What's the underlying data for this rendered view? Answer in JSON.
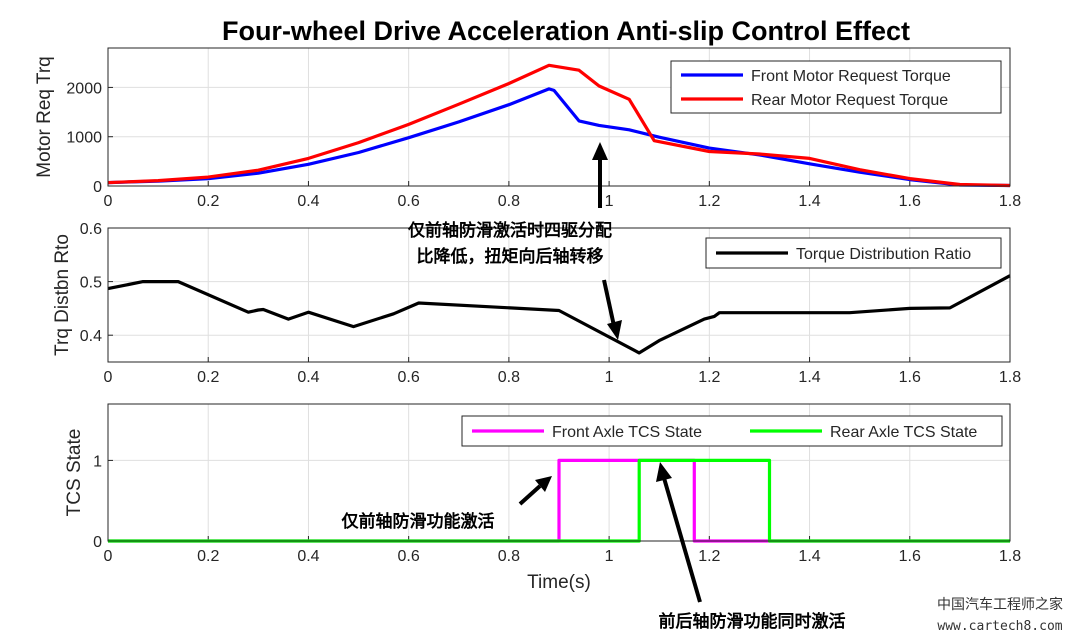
{
  "title": "Four-wheel Drive Acceleration Anti-slip Control Effect",
  "chart_data": [
    {
      "type": "line",
      "ylabel": "Motor Req Trq",
      "xlim": [
        0,
        1.8
      ],
      "ylim": [
        0,
        2800
      ],
      "xticks": [
        "0",
        "0.2",
        "0.4",
        "0.6",
        "0.8",
        "1",
        "1.2",
        "1.4",
        "1.6",
        "1.8"
      ],
      "yticks": [
        "0",
        "1000",
        "2000"
      ],
      "grid": true,
      "legend_position": "top-right",
      "series": [
        {
          "name": "Front Motor Request Torque",
          "color": "#0000ff",
          "x": [
            0,
            0.1,
            0.2,
            0.3,
            0.4,
            0.5,
            0.6,
            0.7,
            0.8,
            0.88,
            0.89,
            0.94,
            0.98,
            1.04,
            1.1,
            1.2,
            1.3,
            1.4,
            1.5,
            1.6,
            1.7,
            1.8
          ],
          "y": [
            70,
            100,
            150,
            260,
            440,
            680,
            980,
            1300,
            1650,
            1970,
            1940,
            1320,
            1230,
            1140,
            990,
            770,
            630,
            450,
            280,
            130,
            20,
            10
          ]
        },
        {
          "name": "Rear Motor Request Torque",
          "color": "#ff0000",
          "x": [
            0,
            0.1,
            0.2,
            0.3,
            0.4,
            0.5,
            0.6,
            0.7,
            0.8,
            0.88,
            0.94,
            0.98,
            1.04,
            1.09,
            1.2,
            1.3,
            1.4,
            1.5,
            1.6,
            1.7,
            1.8
          ],
          "y": [
            70,
            110,
            180,
            320,
            560,
            880,
            1250,
            1660,
            2080,
            2450,
            2350,
            2030,
            1760,
            920,
            700,
            650,
            560,
            330,
            150,
            30,
            10
          ]
        }
      ]
    },
    {
      "type": "line",
      "ylabel": "Trq Distbn Rto",
      "xlim": [
        0,
        1.8
      ],
      "ylim": [
        0.35,
        0.6
      ],
      "xticks": [
        "0",
        "0.2",
        "0.4",
        "0.6",
        "0.8",
        "1",
        "1.2",
        "1.4",
        "1.6",
        "1.8"
      ],
      "yticks": [
        "0.4",
        "0.5",
        "0.6"
      ],
      "grid": true,
      "legend_position": "top-right",
      "series": [
        {
          "name": "Torque Distribution Ratio",
          "color": "#000000",
          "x": [
            0,
            0.07,
            0.14,
            0.28,
            0.3,
            0.31,
            0.36,
            0.4,
            0.49,
            0.57,
            0.62,
            0.9,
            1.06,
            1.1,
            1.19,
            1.21,
            1.22,
            1.3,
            1.48,
            1.6,
            1.68,
            1.8
          ],
          "y": [
            0.487,
            0.5,
            0.5,
            0.443,
            0.447,
            0.448,
            0.43,
            0.443,
            0.416,
            0.44,
            0.46,
            0.446,
            0.367,
            0.39,
            0.43,
            0.435,
            0.442,
            0.442,
            0.442,
            0.45,
            0.451,
            0.511
          ]
        }
      ]
    },
    {
      "type": "line",
      "ylabel": "TCS State",
      "xlabel": "Time(s)",
      "xlim": [
        0,
        1.8
      ],
      "ylim": [
        0,
        1.7
      ],
      "xticks": [
        "0",
        "0.2",
        "0.4",
        "0.6",
        "0.8",
        "1",
        "1.2",
        "1.4",
        "1.6",
        "1.8"
      ],
      "yticks": [
        "0",
        "1"
      ],
      "grid": true,
      "legend_position": "top-right",
      "series": [
        {
          "name": "Front Axle TCS State",
          "color": "#ff00ff",
          "x": [
            0,
            0.9,
            0.9,
            1.17,
            1.17,
            1.8
          ],
          "y": [
            0,
            0,
            1,
            1,
            0,
            0
          ]
        },
        {
          "name": "Rear Axle TCS State",
          "color": "#00ff00",
          "x": [
            0,
            1.06,
            1.06,
            1.32,
            1.32,
            1.8
          ],
          "y": [
            0,
            0,
            1,
            1,
            0,
            0
          ]
        }
      ]
    }
  ],
  "annotations": {
    "a1_line1": "仅前轴防滑激活时四驱分配",
    "a1_line2": "比降低，扭矩向后轴转移",
    "a2": "仅前轴防滑功能激活",
    "a3": "前后轴防滑功能同时激活"
  },
  "watermark": {
    "line1": "中国汽车工程师之家",
    "line2": "www.cartech8.com"
  }
}
